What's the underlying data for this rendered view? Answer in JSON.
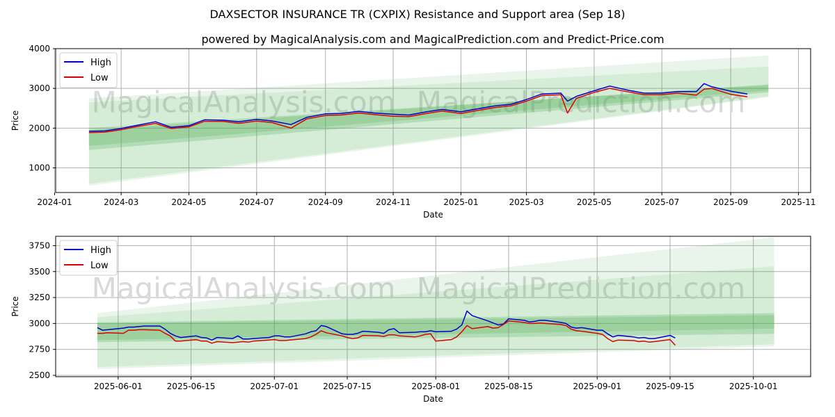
{
  "page": {
    "title": "DAXSECTOR INSURANCE TR (CXPIX) Resistance and Support area (Sep 18)",
    "subtitle": "powered by MagicalAnalysis.com and MagicalPrediction.com and Predict-Price.com",
    "watermarks": [
      "MagicalAnalysis.com",
      "MagicalPrediction.com"
    ]
  },
  "colors": {
    "high": "#0000cc",
    "low": "#dd0000",
    "band": "#4caf50",
    "grid": "#b0b0b0",
    "watermark": "#d9d9d9"
  },
  "chart_data": [
    {
      "type": "line",
      "panel": "full-history",
      "xlabel": "Date",
      "ylabel": "Price",
      "ylim": [
        380,
        4000
      ],
      "xlim": [
        "2024-01-02",
        "2025-11-12"
      ],
      "grid": true,
      "legend": "top-left",
      "x_ticks": [
        "2024-01",
        "2024-03",
        "2024-05",
        "2024-07",
        "2024-09",
        "2024-11",
        "2025-01",
        "2025-03",
        "2025-05",
        "2025-07",
        "2025-09",
        "2025-11"
      ],
      "y_ticks": [
        1000,
        2000,
        3000,
        4000
      ],
      "series": [
        {
          "name": "High",
          "x": [
            "2024-02-01",
            "2024-02-15",
            "2024-03-01",
            "2024-03-15",
            "2024-04-01",
            "2024-04-15",
            "2024-05-01",
            "2024-05-15",
            "2024-06-01",
            "2024-06-15",
            "2024-07-01",
            "2024-07-15",
            "2024-08-01",
            "2024-08-15",
            "2024-09-01",
            "2024-09-15",
            "2024-10-01",
            "2024-10-15",
            "2024-11-01",
            "2024-11-15",
            "2024-12-01",
            "2024-12-15",
            "2025-01-01",
            "2025-01-15",
            "2025-02-01",
            "2025-02-15",
            "2025-03-01",
            "2025-03-15",
            "2025-04-01",
            "2025-04-07",
            "2025-04-15",
            "2025-05-01",
            "2025-05-15",
            "2025-06-01",
            "2025-06-15",
            "2025-07-01",
            "2025-07-15",
            "2025-08-01",
            "2025-08-08",
            "2025-08-15",
            "2025-09-01",
            "2025-09-16"
          ],
          "values": [
            1920,
            1930,
            1990,
            2070,
            2160,
            2020,
            2060,
            2210,
            2200,
            2160,
            2220,
            2180,
            2090,
            2270,
            2360,
            2370,
            2420,
            2380,
            2350,
            2330,
            2410,
            2470,
            2410,
            2480,
            2560,
            2600,
            2720,
            2860,
            2880,
            2680,
            2800,
            2940,
            3060,
            2950,
            2880,
            2880,
            2920,
            2920,
            3120,
            3040,
            2930,
            2860
          ]
        },
        {
          "name": "Low",
          "x": [
            "2024-02-01",
            "2024-02-15",
            "2024-03-01",
            "2024-03-15",
            "2024-04-01",
            "2024-04-15",
            "2024-05-01",
            "2024-05-15",
            "2024-06-01",
            "2024-06-15",
            "2024-07-01",
            "2024-07-15",
            "2024-08-01",
            "2024-08-15",
            "2024-09-01",
            "2024-09-15",
            "2024-10-01",
            "2024-10-15",
            "2024-11-01",
            "2024-11-15",
            "2024-12-01",
            "2024-12-15",
            "2025-01-01",
            "2025-01-15",
            "2025-02-01",
            "2025-02-15",
            "2025-03-01",
            "2025-03-15",
            "2025-04-01",
            "2025-04-07",
            "2025-04-15",
            "2025-05-01",
            "2025-05-15",
            "2025-06-01",
            "2025-06-15",
            "2025-07-01",
            "2025-07-15",
            "2025-08-01",
            "2025-08-08",
            "2025-08-15",
            "2025-09-01",
            "2025-09-16"
          ],
          "values": [
            1890,
            1900,
            1960,
            2040,
            2120,
            1990,
            2030,
            2170,
            2170,
            2120,
            2180,
            2140,
            2000,
            2230,
            2320,
            2330,
            2380,
            2340,
            2300,
            2290,
            2370,
            2430,
            2370,
            2440,
            2520,
            2560,
            2680,
            2820,
            2840,
            2380,
            2750,
            2900,
            3000,
            2910,
            2840,
            2840,
            2880,
            2830,
            2980,
            3000,
            2850,
            2790
          ]
        }
      ],
      "bands": [
        {
          "start": {
            "x": "2024-02-01",
            "low": 1450,
            "high": 1950
          },
          "end": {
            "x": "2025-10-05",
            "low": 2900,
            "high": 3100
          }
        },
        {
          "start": {
            "x": "2024-02-01",
            "low": 1550,
            "high": 2000
          },
          "end": {
            "x": "2025-10-05",
            "low": 2950,
            "high": 3080
          }
        },
        {
          "start": {
            "x": "2024-02-01",
            "low": 600,
            "high": 2650
          },
          "end": {
            "x": "2025-10-05",
            "low": 2800,
            "high": 3550
          }
        },
        {
          "start": {
            "x": "2024-02-01",
            "low": 550,
            "high": 2750
          },
          "end": {
            "x": "2025-10-05",
            "low": 2780,
            "high": 3830
          }
        }
      ]
    },
    {
      "type": "line",
      "panel": "recent-zoom",
      "xlabel": "Date",
      "ylabel": "Price",
      "ylim": [
        2487,
        3840
      ],
      "xlim": [
        "2025-05-20",
        "2025-10-12"
      ],
      "grid": true,
      "legend": "top-left",
      "x_ticks": [
        "2025-06-01",
        "2025-06-15",
        "2025-07-01",
        "2025-07-15",
        "2025-08-01",
        "2025-08-15",
        "2025-09-01",
        "2025-09-15",
        "2025-10-01"
      ],
      "y_ticks": [
        2500,
        2750,
        3000,
        3250,
        3500,
        3750
      ],
      "series": [
        {
          "name": "High",
          "x": [
            "2025-05-28",
            "2025-05-29",
            "2025-05-30",
            "2025-06-02",
            "2025-06-03",
            "2025-06-04",
            "2025-06-05",
            "2025-06-06",
            "2025-06-09",
            "2025-06-10",
            "2025-06-11",
            "2025-06-12",
            "2025-06-13",
            "2025-06-16",
            "2025-06-17",
            "2025-06-18",
            "2025-06-19",
            "2025-06-20",
            "2025-06-23",
            "2025-06-24",
            "2025-06-25",
            "2025-06-26",
            "2025-06-27",
            "2025-06-30",
            "2025-07-01",
            "2025-07-02",
            "2025-07-03",
            "2025-07-04",
            "2025-07-07",
            "2025-07-08",
            "2025-07-09",
            "2025-07-10",
            "2025-07-11",
            "2025-07-14",
            "2025-07-15",
            "2025-07-16",
            "2025-07-17",
            "2025-07-18",
            "2025-07-21",
            "2025-07-22",
            "2025-07-23",
            "2025-07-24",
            "2025-07-25",
            "2025-07-28",
            "2025-07-29",
            "2025-07-30",
            "2025-07-31",
            "2025-08-01",
            "2025-08-04",
            "2025-08-05",
            "2025-08-06",
            "2025-08-07",
            "2025-08-08",
            "2025-08-11",
            "2025-08-12",
            "2025-08-13",
            "2025-08-14",
            "2025-08-15",
            "2025-08-18",
            "2025-08-19",
            "2025-08-20",
            "2025-08-21",
            "2025-08-22",
            "2025-08-25",
            "2025-08-26",
            "2025-08-27",
            "2025-08-28",
            "2025-08-29",
            "2025-09-01",
            "2025-09-02",
            "2025-09-03",
            "2025-09-04",
            "2025-09-05",
            "2025-09-08",
            "2025-09-09",
            "2025-09-10",
            "2025-09-11",
            "2025-09-12",
            "2025-09-15",
            "2025-09-16"
          ],
          "values": [
            2960,
            2935,
            2940,
            2955,
            2965,
            2965,
            2970,
            2975,
            2975,
            2945,
            2905,
            2880,
            2865,
            2880,
            2865,
            2860,
            2840,
            2865,
            2855,
            2880,
            2850,
            2850,
            2855,
            2865,
            2880,
            2880,
            2870,
            2870,
            2900,
            2920,
            2930,
            2980,
            2970,
            2900,
            2895,
            2895,
            2905,
            2925,
            2915,
            2905,
            2940,
            2950,
            2910,
            2915,
            2920,
            2920,
            2930,
            2920,
            2925,
            2945,
            2985,
            3120,
            3075,
            3025,
            3005,
            2985,
            2995,
            3045,
            3030,
            3015,
            3020,
            3030,
            3030,
            3010,
            3000,
            2965,
            2955,
            2960,
            2935,
            2935,
            2900,
            2870,
            2885,
            2870,
            2860,
            2865,
            2855,
            2855,
            2885,
            2860
          ]
        },
        {
          "name": "Low",
          "x": [
            "2025-05-28",
            "2025-05-29",
            "2025-05-30",
            "2025-06-02",
            "2025-06-03",
            "2025-06-04",
            "2025-06-05",
            "2025-06-06",
            "2025-06-09",
            "2025-06-10",
            "2025-06-11",
            "2025-06-12",
            "2025-06-13",
            "2025-06-16",
            "2025-06-17",
            "2025-06-18",
            "2025-06-19",
            "2025-06-20",
            "2025-06-23",
            "2025-06-24",
            "2025-06-25",
            "2025-06-26",
            "2025-06-27",
            "2025-06-30",
            "2025-07-01",
            "2025-07-02",
            "2025-07-03",
            "2025-07-04",
            "2025-07-07",
            "2025-07-08",
            "2025-07-09",
            "2025-07-10",
            "2025-07-11",
            "2025-07-14",
            "2025-07-15",
            "2025-07-16",
            "2025-07-17",
            "2025-07-18",
            "2025-07-21",
            "2025-07-22",
            "2025-07-23",
            "2025-07-24",
            "2025-07-25",
            "2025-07-28",
            "2025-07-29",
            "2025-07-30",
            "2025-07-31",
            "2025-08-01",
            "2025-08-04",
            "2025-08-05",
            "2025-08-06",
            "2025-08-07",
            "2025-08-08",
            "2025-08-11",
            "2025-08-12",
            "2025-08-13",
            "2025-08-14",
            "2025-08-15",
            "2025-08-18",
            "2025-08-19",
            "2025-08-20",
            "2025-08-21",
            "2025-08-22",
            "2025-08-25",
            "2025-08-26",
            "2025-08-27",
            "2025-08-28",
            "2025-08-29",
            "2025-09-01",
            "2025-09-02",
            "2025-09-03",
            "2025-09-04",
            "2025-09-05",
            "2025-09-08",
            "2025-09-09",
            "2025-09-10",
            "2025-09-11",
            "2025-09-12",
            "2025-09-15",
            "2025-09-16"
          ],
          "values": [
            2905,
            2905,
            2910,
            2905,
            2935,
            2935,
            2940,
            2940,
            2935,
            2905,
            2880,
            2830,
            2830,
            2845,
            2830,
            2830,
            2810,
            2825,
            2815,
            2820,
            2825,
            2820,
            2830,
            2840,
            2845,
            2835,
            2835,
            2840,
            2855,
            2870,
            2895,
            2930,
            2910,
            2880,
            2865,
            2855,
            2860,
            2885,
            2880,
            2875,
            2890,
            2890,
            2880,
            2870,
            2880,
            2895,
            2900,
            2830,
            2845,
            2870,
            2920,
            2980,
            2950,
            2970,
            2955,
            2960,
            2990,
            3025,
            3010,
            3000,
            3000,
            3005,
            3000,
            2990,
            2980,
            2945,
            2930,
            2925,
            2905,
            2895,
            2855,
            2825,
            2840,
            2835,
            2825,
            2830,
            2820,
            2825,
            2845,
            2790
          ]
        }
      ],
      "bands": [
        {
          "start": {
            "x": "2025-05-28",
            "low": 2820,
            "high": 3010
          },
          "end": {
            "x": "2025-10-05",
            "low": 2900,
            "high": 3100
          }
        },
        {
          "start": {
            "x": "2025-05-28",
            "low": 2840,
            "high": 3000
          },
          "end": {
            "x": "2025-10-05",
            "low": 2950,
            "high": 3080
          }
        },
        {
          "start": {
            "x": "2025-05-28",
            "low": 2580,
            "high": 3060
          },
          "end": {
            "x": "2025-10-05",
            "low": 2800,
            "high": 3550
          }
        },
        {
          "start": {
            "x": "2025-05-28",
            "low": 2560,
            "high": 3100
          },
          "end": {
            "x": "2025-10-05",
            "low": 2780,
            "high": 3830
          }
        }
      ]
    }
  ]
}
